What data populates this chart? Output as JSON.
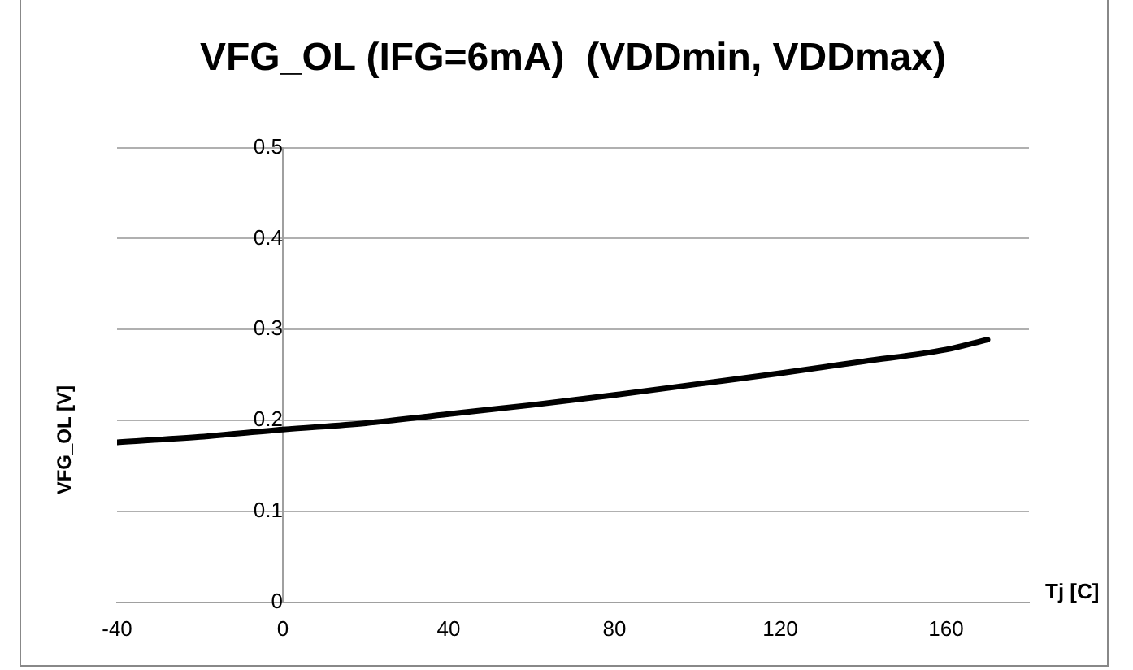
{
  "chart_data": {
    "type": "line",
    "title": "VFG_OL (IFG=6mA)  (VDDmin, VDDmax)",
    "xlabel": "Tj [C]",
    "ylabel": "VFG_OL [V]",
    "x": [
      -40,
      -20,
      0,
      20,
      40,
      60,
      80,
      100,
      120,
      140,
      160,
      170
    ],
    "series": [
      {
        "color": "#000000",
        "values": [
          0.176,
          0.182,
          0.19,
          0.197,
          0.207,
          0.217,
          0.228,
          0.24,
          0.252,
          0.265,
          0.278,
          0.289
        ]
      }
    ],
    "xlim": [
      -40,
      180
    ],
    "xticks": [
      -40,
      0,
      40,
      80,
      120,
      160
    ],
    "ylim": [
      0,
      0.5
    ],
    "yticks": [
      0,
      0.1,
      0.2,
      0.3,
      0.4,
      0.5
    ],
    "grid": "y",
    "legend": false,
    "marker": "none",
    "line_style": "solid"
  }
}
